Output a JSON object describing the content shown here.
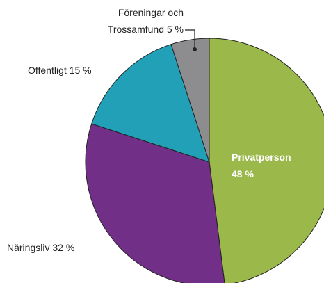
{
  "chart_data": {
    "type": "pie",
    "categories": [
      "Privatperson",
      "Näringsliv",
      "Offentligt",
      "Föreningar och Trossamfund"
    ],
    "values": [
      48,
      32,
      15,
      5
    ],
    "value_labels": [
      "48 %",
      "32 %",
      "15 %",
      "5 %"
    ],
    "colors": [
      "#9bb84b",
      "#722f87",
      "#21a0b7",
      "#8d8d8f"
    ]
  }
}
